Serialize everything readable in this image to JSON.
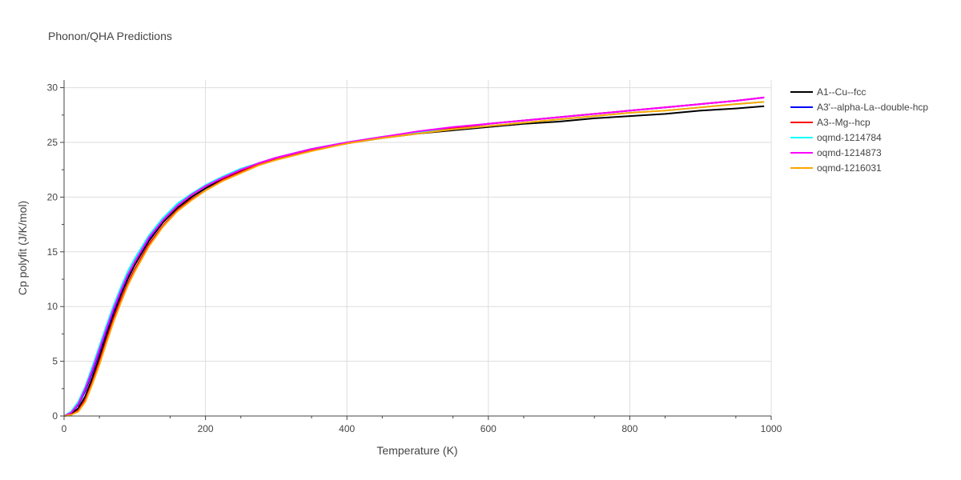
{
  "chart_data": {
    "type": "line",
    "title": "Phonon/QHA Predictions",
    "xlabel": "Temperature (K)",
    "ylabel": "Cp polyfit (J/K/mol)",
    "xlim": [
      0,
      1000
    ],
    "ylim": [
      0,
      30.7
    ],
    "xticks": [
      0,
      200,
      400,
      600,
      800,
      1000
    ],
    "yticks": [
      0,
      5,
      10,
      15,
      20,
      25,
      30
    ],
    "grid": true,
    "legend_position": "top-right",
    "x": [
      0,
      10,
      20,
      30,
      40,
      50,
      60,
      70,
      80,
      90,
      100,
      120,
      140,
      160,
      180,
      200,
      225,
      250,
      275,
      300,
      350,
      400,
      450,
      500,
      550,
      600,
      650,
      700,
      750,
      800,
      850,
      900,
      950,
      990
    ],
    "series": [
      {
        "name": "A1--Cu--fcc",
        "color": "#000000",
        "values": [
          0,
          0.2,
          0.7,
          1.8,
          3.5,
          5.4,
          7.4,
          9.3,
          11.0,
          12.5,
          13.8,
          16.0,
          17.7,
          19.0,
          20.0,
          20.8,
          21.7,
          22.4,
          23.0,
          23.5,
          24.3,
          24.9,
          25.4,
          25.8,
          26.1,
          26.4,
          26.7,
          26.9,
          27.2,
          27.4,
          27.6,
          27.9,
          28.1,
          28.3
        ]
      },
      {
        "name": "A3'--alpha-La--double-hcp",
        "color": "#0000ff",
        "values": [
          0,
          0.3,
          1.0,
          2.3,
          4.0,
          5.9,
          7.8,
          9.6,
          11.3,
          12.8,
          14.1,
          16.2,
          17.9,
          19.2,
          20.2,
          21.0,
          21.8,
          22.5,
          23.1,
          23.6,
          24.4,
          25.0,
          25.5,
          25.9,
          26.3,
          26.7,
          27.0,
          27.3,
          27.6,
          27.9,
          28.2,
          28.5,
          28.8,
          29.1
        ]
      },
      {
        "name": "A3--Mg--hcp",
        "color": "#ff0000",
        "values": [
          0,
          0.1,
          0.5,
          1.5,
          3.1,
          5.0,
          7.0,
          8.9,
          10.6,
          12.1,
          13.4,
          15.7,
          17.4,
          18.8,
          19.8,
          20.6,
          21.6,
          22.3,
          23.0,
          23.5,
          24.3,
          24.9,
          25.5,
          25.9,
          26.3,
          26.7,
          27.0,
          27.3,
          27.6,
          27.9,
          28.2,
          28.5,
          28.8,
          29.1
        ]
      },
      {
        "name": "oqmd-1214784",
        "color": "#00ffff",
        "values": [
          0,
          0.4,
          1.3,
          2.7,
          4.5,
          6.4,
          8.3,
          10.1,
          11.7,
          13.2,
          14.4,
          16.5,
          18.1,
          19.4,
          20.3,
          21.1,
          21.9,
          22.6,
          23.1,
          23.6,
          24.4,
          25.0,
          25.5,
          25.9,
          26.2,
          26.5,
          26.8,
          27.1,
          27.4,
          27.7,
          27.9,
          28.2,
          28.5,
          28.7
        ]
      },
      {
        "name": "oqmd-1214873",
        "color": "#ff00ff",
        "values": [
          0,
          0.3,
          1.1,
          2.5,
          4.2,
          6.1,
          8.0,
          9.8,
          11.4,
          12.9,
          14.1,
          16.3,
          17.9,
          19.2,
          20.2,
          21.0,
          21.8,
          22.5,
          23.1,
          23.6,
          24.4,
          25.0,
          25.5,
          26.0,
          26.4,
          26.7,
          27.0,
          27.3,
          27.6,
          27.9,
          28.2,
          28.5,
          28.8,
          29.1
        ]
      },
      {
        "name": "oqmd-1216031",
        "color": "#ffa500",
        "values": [
          0,
          0.1,
          0.4,
          1.3,
          2.9,
          4.7,
          6.7,
          8.6,
          10.3,
          11.9,
          13.2,
          15.5,
          17.3,
          18.7,
          19.7,
          20.6,
          21.5,
          22.2,
          22.9,
          23.4,
          24.2,
          24.9,
          25.4,
          25.8,
          26.2,
          26.5,
          26.8,
          27.1,
          27.4,
          27.7,
          27.9,
          28.2,
          28.5,
          28.7
        ]
      }
    ]
  }
}
